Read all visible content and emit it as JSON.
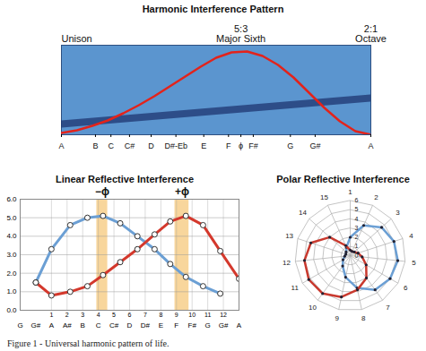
{
  "chart_data": [
    {
      "type": "line",
      "title": "Harmonic Interference Pattern",
      "x": [
        1,
        1.05,
        1.1,
        1.15,
        1.2,
        1.25,
        1.3,
        1.35,
        1.4,
        1.45,
        1.5,
        1.55,
        1.6,
        1.65,
        1.7,
        1.75,
        1.8,
        1.85,
        1.9,
        1.95,
        2
      ],
      "series": [
        {
          "color": "#e3231b",
          "values": [
            0.02,
            0.05,
            0.1,
            0.16,
            0.24,
            0.33,
            0.43,
            0.54,
            0.65,
            0.76,
            0.86,
            0.92,
            0.93,
            0.88,
            0.78,
            0.64,
            0.47,
            0.3,
            0.15,
            0.04,
            0
          ]
        },
        {
          "color": "#1d3570",
          "x": [
            1,
            2
          ],
          "values": [
            0.12,
            0.41
          ]
        }
      ],
      "xlim": [
        1,
        2
      ],
      "ylim": [
        0,
        1
      ],
      "xticks": [
        {
          "value": 1,
          "label": "A"
        },
        {
          "value": 1.11,
          "label": "B"
        },
        {
          "value": 1.16,
          "label": "C"
        },
        {
          "value": 1.22,
          "label": "C#"
        },
        {
          "value": 1.29,
          "label": "D"
        },
        {
          "value": 1.37,
          "label": "D#-Eb"
        },
        {
          "value": 1.46,
          "label": "E"
        },
        {
          "value": 1.54,
          "label": "F"
        },
        {
          "value": 1.58,
          "label": "ϕ"
        },
        {
          "value": 1.62,
          "label": "F#"
        },
        {
          "value": 1.74,
          "label": "G"
        },
        {
          "value": 1.82,
          "label": "G#"
        },
        {
          "value": 2,
          "label": "A"
        }
      ],
      "tick_labels": "x",
      "annotations": [
        {
          "text": [
            "Unison"
          ],
          "x": 1
        },
        {
          "text": [
            "5:3",
            "Major Sixth"
          ],
          "x": 1.58
        },
        {
          "text": [
            "2:1",
            "Octave"
          ],
          "x": 2
        }
      ]
    },
    {
      "type": "line",
      "title": "Linear Reflective Interference",
      "series": [
        {
          "color": "#6b9fd4",
          "marker": "circle",
          "x": [
            0,
            1,
            2.2,
            3.3,
            4.3,
            5.4,
            6.5,
            7.6,
            8.6,
            9.6,
            10.7,
            11.8
          ],
          "values": [
            1.5,
            3.3,
            4.6,
            5.0,
            5.1,
            4.7,
            4.0,
            3.3,
            2.5,
            1.8,
            1.3,
            0.9
          ]
        },
        {
          "color": "#d4382c",
          "marker": "circle",
          "x": [
            0,
            1,
            2.2,
            3.3,
            4.3,
            5.4,
            6.5,
            7.6,
            8.6,
            9.6,
            10.7,
            11.8,
            13
          ],
          "values": [
            1.5,
            0.8,
            1.0,
            1.3,
            1.9,
            2.6,
            3.3,
            4.1,
            4.8,
            5.1,
            4.6,
            3.2,
            1.7
          ]
        }
      ],
      "xlim": [
        -1,
        13
      ],
      "ylim": [
        0,
        6
      ],
      "xticks": [
        1,
        2,
        3,
        4,
        5,
        6,
        7,
        8,
        9,
        10,
        11,
        12
      ],
      "yticks": [
        0,
        1,
        2,
        3,
        4,
        5,
        6
      ],
      "note_ticks": [
        {
          "value": -1,
          "label": "G"
        },
        {
          "value": 0,
          "label": "G#"
        },
        {
          "value": 1,
          "label": "A"
        },
        {
          "value": 2,
          "label": "A#"
        },
        {
          "value": 3,
          "label": "B"
        },
        {
          "value": 4,
          "label": "C"
        },
        {
          "value": 5,
          "label": "C#"
        },
        {
          "value": 6,
          "label": "D"
        },
        {
          "value": 7,
          "label": "D#"
        },
        {
          "value": 8,
          "label": "E"
        },
        {
          "value": 9,
          "label": "F"
        },
        {
          "value": 10,
          "label": "F#"
        },
        {
          "value": 11,
          "label": "G"
        },
        {
          "value": 12,
          "label": "G#"
        },
        {
          "value": 13,
          "label": "A"
        }
      ],
      "bands": [
        {
          "label": "−ϕ",
          "x1": 3.9,
          "x2": 4.6
        },
        {
          "label": "+ϕ",
          "x1": 8.9,
          "x2": 9.8
        }
      ],
      "grid": true
    },
    {
      "type": "radar",
      "title": "Polar Reflective Interference",
      "categories": [
        1,
        2,
        3,
        4,
        5,
        6,
        7,
        8,
        9,
        10,
        11,
        12,
        13,
        14,
        15
      ],
      "series": [
        {
          "color": "#6b9fd4",
          "marker": "circle",
          "values": [
            2.0,
            3.6,
            4.6,
            5.0,
            5.2,
            5.0,
            4.6,
            3.6,
            2.4,
            1.4,
            0.9,
            0.6,
            0.5,
            0.6,
            1.0
          ]
        },
        {
          "color": "#c9392e",
          "marker": "circle",
          "values": [
            0.6,
            0.5,
            0.6,
            0.9,
            1.3,
            2.0,
            3.0,
            3.8,
            4.6,
            5.1,
            5.2,
            5.0,
            4.5,
            3.0,
            1.2
          ]
        }
      ],
      "ylim": [
        0,
        6
      ],
      "yticks": [
        0,
        1,
        2,
        3,
        4,
        5,
        6
      ],
      "grid": true
    }
  ],
  "caption": "Figure 1 - Universal harmonic pattern of life."
}
